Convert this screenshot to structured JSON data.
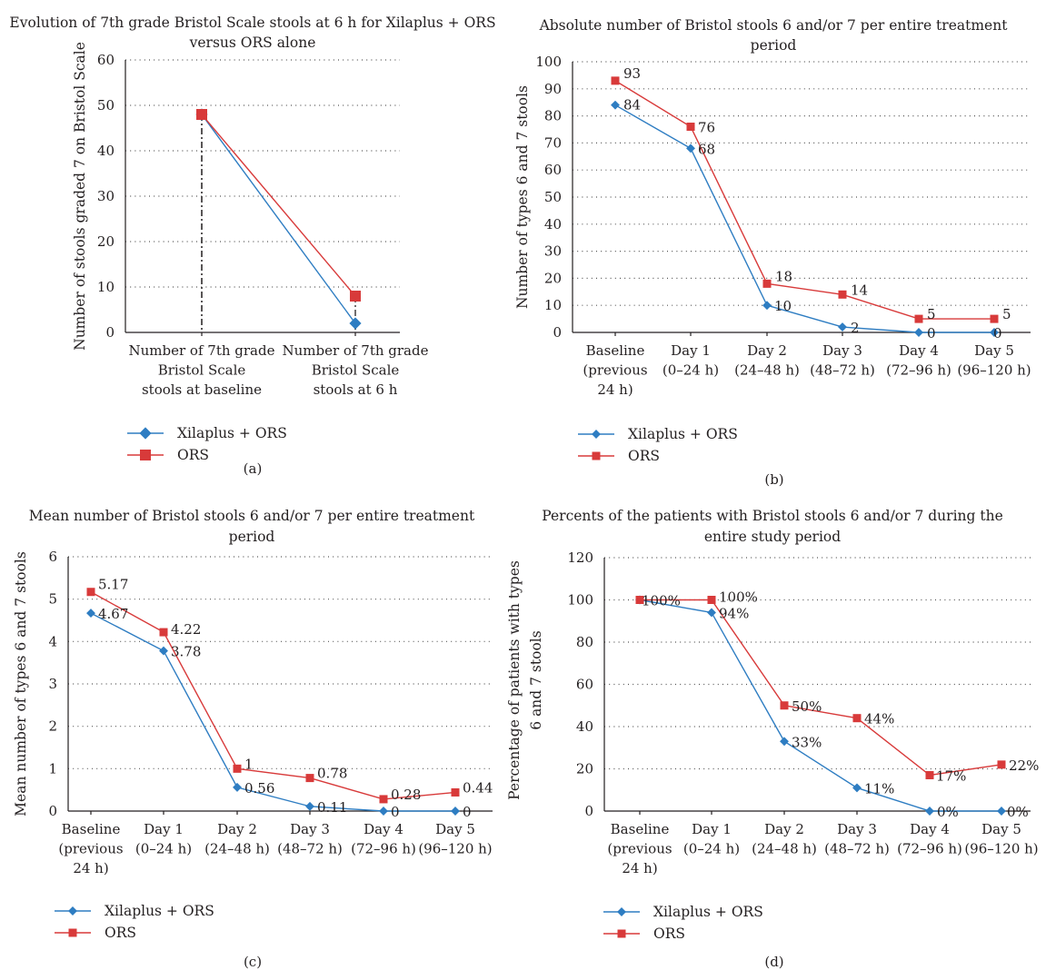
{
  "colors": {
    "xilaplus": "#2e7dc2",
    "ors": "#d83a3a",
    "grid": "#555555"
  },
  "chart_data": [
    {
      "type": "line",
      "panel_label": "(a)",
      "title": [
        "Evolution of 7th grade Bristol Scale stools at 6 h for Xilaplus + ORS",
        "versus ORS alone"
      ],
      "ylabel": "Number of stools graded 7 on Bristol Scale",
      "ylim": [
        0,
        60
      ],
      "yticks": [
        "0",
        "10",
        "20",
        "30",
        "40",
        "50",
        "60"
      ],
      "grid": true,
      "legend_position": "bottom-left",
      "categories": [
        [
          "Number of 7th grade",
          "Bristol Scale",
          "stools at baseline"
        ],
        [
          "Number of 7th grade",
          "Bristol Scale",
          "stools at 6 h"
        ]
      ],
      "series": [
        {
          "name": "Xilaplus + ORS",
          "values": [
            48,
            2
          ],
          "labels": [
            "",
            ""
          ]
        },
        {
          "name": "ORS",
          "values": [
            48,
            8
          ],
          "labels": [
            "",
            ""
          ]
        }
      ]
    },
    {
      "type": "line",
      "panel_label": "(b)",
      "title": [
        "Absolute number of Bristol stools 6 and/or 7 per entire treatment",
        "period"
      ],
      "ylabel": "Number of types 6 and 7 stools",
      "ylim": [
        0,
        100
      ],
      "yticks": [
        "0",
        "10",
        "20",
        "30",
        "40",
        "50",
        "60",
        "70",
        "80",
        "90",
        "100"
      ],
      "grid": true,
      "legend_position": "bottom-left",
      "categories": [
        [
          "Baseline",
          "(previous",
          "24 h)"
        ],
        [
          "Day 1",
          "(0–24 h)"
        ],
        [
          "Day 2",
          "(24–48 h)"
        ],
        [
          "Day 3",
          "(48–72 h)"
        ],
        [
          "Day 4",
          "(72–96 h)"
        ],
        [
          "Day 5",
          "(96–120 h)"
        ]
      ],
      "series": [
        {
          "name": "Xilaplus + ORS",
          "values": [
            84,
            68,
            10,
            2,
            0,
            0
          ],
          "labels": [
            "84",
            "68",
            "10",
            "2",
            "0",
            "0"
          ]
        },
        {
          "name": "ORS",
          "values": [
            93,
            76,
            18,
            14,
            5,
            5
          ],
          "labels": [
            "93",
            "76",
            "18",
            "14",
            "5",
            "5"
          ]
        }
      ]
    },
    {
      "type": "line",
      "panel_label": "(c)",
      "title": [
        "Mean number of Bristol stools 6 and/or 7 per entire treatment",
        "period"
      ],
      "ylabel": "Mean number of types 6 and 7 stools",
      "ylim": [
        0,
        6
      ],
      "yticks": [
        "0",
        "1",
        "2",
        "3",
        "4",
        "5",
        "6"
      ],
      "grid": true,
      "legend_position": "bottom-left",
      "categories": [
        [
          "Baseline",
          "(previous",
          "24 h)"
        ],
        [
          "Day 1",
          "(0–24 h)"
        ],
        [
          "Day 2",
          "(24–48 h)"
        ],
        [
          "Day 3",
          "(48–72 h)"
        ],
        [
          "Day 4",
          "(72–96 h)"
        ],
        [
          "Day 5",
          "(96–120 h)"
        ]
      ],
      "series": [
        {
          "name": "Xilaplus + ORS",
          "values": [
            4.67,
            3.78,
            0.56,
            0.11,
            0,
            0
          ],
          "labels": [
            "4.67",
            "3.78",
            "0.56",
            "0.11",
            "0",
            "0"
          ]
        },
        {
          "name": "ORS",
          "values": [
            5.17,
            4.22,
            1,
            0.78,
            0.28,
            0.44
          ],
          "labels": [
            "5.17",
            "4.22",
            "1",
            "0.78",
            "0.28",
            "0.44"
          ]
        }
      ]
    },
    {
      "type": "line",
      "panel_label": "(d)",
      "title": [
        "Percents of the patients with Bristol stools 6 and/or 7 during the",
        "entire study period"
      ],
      "ylabel": [
        "Percentage of patients with types",
        "6 and 7 stools"
      ],
      "ylim": [
        0,
        120
      ],
      "yticks": [
        "0",
        "20",
        "40",
        "60",
        "80",
        "100",
        "120"
      ],
      "grid": true,
      "legend_position": "bottom-left",
      "categories": [
        [
          "Baseline",
          "(previous",
          "24 h)"
        ],
        [
          "Day 1",
          "(0–24 h)"
        ],
        [
          "Day 2",
          "(24–48 h)"
        ],
        [
          "Day 3",
          "(48–72 h)"
        ],
        [
          "Day 4",
          "(72–96 h)"
        ],
        [
          "Day 5",
          "(96–120 h)"
        ]
      ],
      "series": [
        {
          "name": "Xilaplus + ORS",
          "values": [
            100,
            94,
            33,
            11,
            0,
            0
          ],
          "labels": [
            "",
            "94%",
            "33%",
            "11%",
            "0%",
            "0%"
          ]
        },
        {
          "name": "ORS",
          "values": [
            100,
            100,
            50,
            44,
            17,
            22
          ],
          "labels": [
            "100%",
            "100%",
            "50%",
            "44%",
            "17%",
            "22%"
          ]
        }
      ]
    }
  ]
}
